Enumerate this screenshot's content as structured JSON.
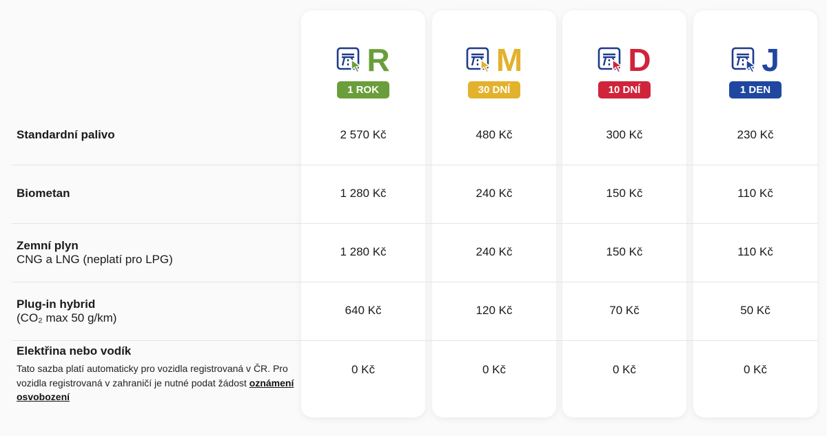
{
  "header": {
    "products": [
      {
        "letter": "R",
        "badge": "1 ROK",
        "color": "#6a9e3a"
      },
      {
        "letter": "M",
        "badge": "30 DNÍ",
        "color": "#e3b22c"
      },
      {
        "letter": "D",
        "badge": "10 DNÍ",
        "color": "#d0243a"
      },
      {
        "letter": "J",
        "badge": "1 DEN",
        "color": "#1f47a0"
      }
    ]
  },
  "rows": [
    {
      "title": "Standardní palivo",
      "prices": [
        "2 570 Kč",
        "480 Kč",
        "300 Kč",
        "230 Kč"
      ]
    },
    {
      "title": "Biometan",
      "prices": [
        "1 280 Kč",
        "240 Kč",
        "150 Kč",
        "110 Kč"
      ]
    },
    {
      "title": "Zemní plyn",
      "subtitle": "CNG a LNG (neplatí pro LPG)",
      "prices": [
        "1 280 Kč",
        "240 Kč",
        "150 Kč",
        "110 Kč"
      ]
    },
    {
      "title": "Plug-in hybrid",
      "subtitle": "(CO₂ max 50 g/km)",
      "prices": [
        "640 Kč",
        "120 Kč",
        "70 Kč",
        "50 Kč"
      ]
    },
    {
      "title": "Elektřina nebo vodík",
      "note": "Tato sazba platí automaticky pro vozidla registrovaná v ČR. Pro vozidla registrovaná v zahraničí je nutné podat žádost",
      "link": "oznámení osvobození",
      "prices": [
        "0 Kč",
        "0 Kč",
        "0 Kč",
        "0 Kč"
      ]
    }
  ]
}
